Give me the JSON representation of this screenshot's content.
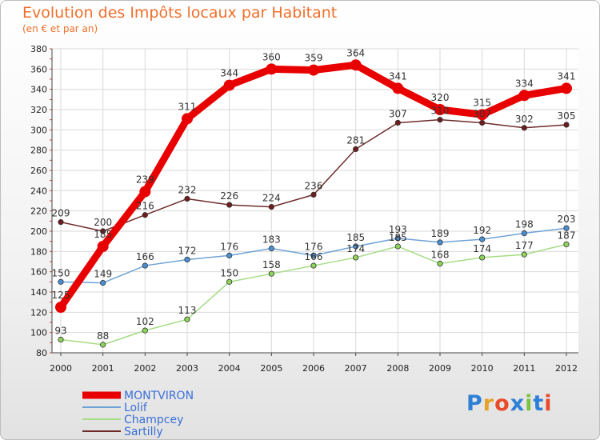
{
  "chart_data": {
    "type": "line",
    "title": "Evolution des Impôts locaux par Habitant",
    "subtitle": "(en € et par an)",
    "xlabel": "",
    "ylabel": "",
    "x": [
      "2000",
      "2001",
      "2002",
      "2003",
      "2004",
      "2005",
      "2006",
      "2007",
      "2008",
      "2009",
      "2010",
      "2011",
      "2012"
    ],
    "ylim": [
      80,
      380
    ],
    "yticks": [
      80,
      100,
      120,
      140,
      160,
      180,
      200,
      220,
      240,
      260,
      280,
      300,
      320,
      340,
      360,
      380
    ],
    "legend_position": "bottom-left",
    "series": [
      {
        "name": "MONTVIRON",
        "color": "#e80000",
        "values": [
          125,
          185,
          239,
          311,
          344,
          360,
          359,
          364,
          341,
          320,
          315,
          334,
          341
        ]
      },
      {
        "name": "Lolif",
        "color": "#6fa3d6",
        "values": [
          150,
          149,
          166,
          172,
          176,
          183,
          176,
          185,
          193,
          189,
          192,
          198,
          203
        ]
      },
      {
        "name": "Champcey",
        "color": "#a5dc85",
        "values": [
          93,
          88,
          102,
          113,
          150,
          158,
          166,
          174,
          185,
          168,
          174,
          177,
          187
        ]
      },
      {
        "name": "Sartilly",
        "color": "#6e2b2b",
        "values": [
          209,
          200,
          216,
          232,
          226,
          224,
          236,
          281,
          307,
          310,
          307,
          302,
          305
        ]
      }
    ]
  },
  "logo": {
    "text": "Proxiti"
  }
}
